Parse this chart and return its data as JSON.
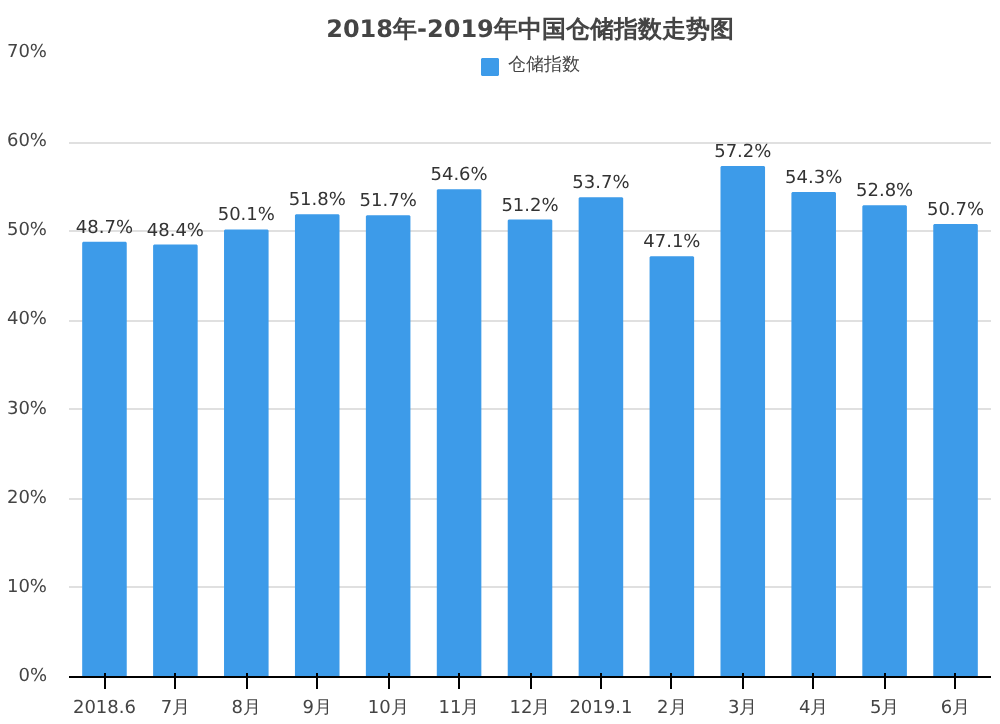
{
  "chart_data": {
    "type": "bar",
    "title": "2018年-2019年中国仓储指数走势图",
    "categories": [
      "2018.6",
      "7月",
      "8月",
      "9月",
      "10月",
      "11月",
      "12月",
      "2019.1",
      "2月",
      "3月",
      "4月",
      "5月",
      "6月"
    ],
    "series": [
      {
        "name": "仓储指数",
        "color": "#3d9be9",
        "values": [
          48.7,
          48.4,
          50.1,
          51.8,
          51.7,
          54.6,
          51.2,
          53.7,
          47.1,
          57.2,
          54.3,
          52.8,
          50.7
        ],
        "value_labels": [
          "48.7%",
          "48.4%",
          "50.1%",
          "51.8%",
          "51.7%",
          "54.6%",
          "51.2%",
          "53.7%",
          "47.1%",
          "57.2%",
          "54.3%",
          "52.8%",
          "50.7%"
        ]
      }
    ],
    "ylim": [
      0,
      70
    ],
    "yticks": [
      {
        "value": 0,
        "label": "0%"
      },
      {
        "value": 10,
        "label": "10%"
      },
      {
        "value": 20,
        "label": "20%"
      },
      {
        "value": 30,
        "label": "30%"
      },
      {
        "value": 40,
        "label": "40%"
      },
      {
        "value": 50,
        "label": "50%"
      },
      {
        "value": 60,
        "label": "60%"
      },
      {
        "value": 70,
        "label": "70%"
      }
    ],
    "grid": "y",
    "legend": "top"
  }
}
